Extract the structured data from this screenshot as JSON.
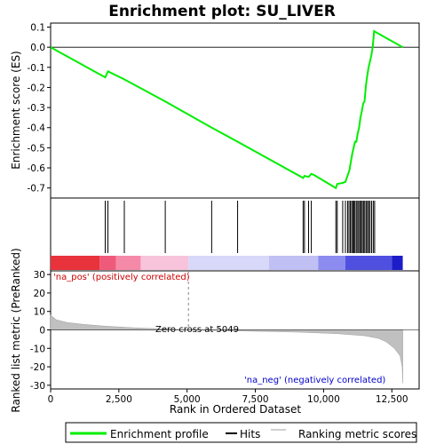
{
  "chart_data": {
    "type": "line",
    "title": "Enrichment plot: SU_LIVER",
    "xlabel": "Rank in Ordered Dataset",
    "ylabel_top": "Enrichment score (ES)",
    "ylabel_bottom": "Ranked list metric (PreRanked)",
    "xlim": [
      0,
      13500
    ],
    "ylim_top": [
      -0.75,
      0.12
    ],
    "ylim_bottom": [
      -32,
      32
    ],
    "x_ticks": [
      0,
      2500,
      5000,
      7500,
      10000,
      12500
    ],
    "x_tick_labels": [
      "0",
      "2,500",
      "5,000",
      "7,500",
      "10,000",
      "12,500"
    ],
    "y_ticks_top": [
      0.1,
      0.0,
      -0.1,
      -0.2,
      -0.3,
      -0.4,
      -0.5,
      -0.6,
      -0.7
    ],
    "y_tick_labels_top": [
      "0.1",
      "0.0",
      "-0.1",
      "-0.2",
      "-0.3",
      "-0.4",
      "-0.5",
      "-0.6",
      "-0.7"
    ],
    "y_ticks_bottom": [
      30,
      20,
      10,
      0,
      -10,
      -20,
      -30
    ],
    "y_tick_labels_bottom": [
      "30",
      "20",
      "10",
      "0",
      "-10",
      "-20",
      "-30"
    ],
    "series": [
      {
        "name": "Enrichment profile",
        "color": "#00ee00",
        "x": [
          0,
          2000,
          2100,
          2700,
          4200,
          5900,
          6850,
          9250,
          9300,
          9450,
          9550,
          9650,
          10450,
          10500,
          10700,
          10800,
          10900,
          10950,
          11000,
          11050,
          11100,
          11150,
          11200,
          11250,
          11300,
          11350,
          11400,
          11450,
          11500,
          11550,
          11600,
          11650,
          11700,
          11750,
          11800,
          11850,
          12900
        ],
        "y": [
          0.0,
          -0.15,
          -0.12,
          -0.16,
          -0.27,
          -0.4,
          -0.47,
          -0.65,
          -0.64,
          -0.645,
          -0.63,
          -0.635,
          -0.7,
          -0.68,
          -0.675,
          -0.67,
          -0.63,
          -0.61,
          -0.57,
          -0.53,
          -0.5,
          -0.47,
          -0.47,
          -0.43,
          -0.4,
          -0.35,
          -0.32,
          -0.28,
          -0.27,
          -0.19,
          -0.14,
          -0.1,
          -0.07,
          -0.04,
          0.0,
          0.08,
          0.0
        ]
      }
    ],
    "hits_x": [
      2000,
      2100,
      2700,
      4200,
      5900,
      6850,
      9250,
      9300,
      9450,
      9550,
      10450,
      10500,
      10700,
      10800,
      10880,
      10930,
      10980,
      11030,
      11070,
      11110,
      11150,
      11200,
      11250,
      11290,
      11340,
      11380,
      11420,
      11470,
      11510,
      11560,
      11610,
      11650,
      11700,
      11760,
      11820,
      11870
    ],
    "metric_points": [
      [
        0,
        8
      ],
      [
        200,
        5.5
      ],
      [
        600,
        4
      ],
      [
        1200,
        3
      ],
      [
        2000,
        2
      ],
      [
        3000,
        1.2
      ],
      [
        5049,
        0
      ],
      [
        7000,
        -0.6
      ],
      [
        9000,
        -1.2
      ],
      [
        10500,
        -2
      ],
      [
        11500,
        -3.2
      ],
      [
        12000,
        -4.5
      ],
      [
        12300,
        -6.5
      ],
      [
        12600,
        -10
      ],
      [
        12800,
        -14
      ],
      [
        12880,
        -20
      ],
      [
        12900,
        -29
      ]
    ],
    "annotations": {
      "pos_label": "'na_pos' (positively correlated)",
      "neg_label": "'na_neg' (negatively correlated)",
      "zero_cross": "Zero cross at 5049",
      "zero_cross_x": 5049
    },
    "colors": {
      "profile": "#00ee00",
      "hits": "#000000",
      "metric_fill": "#c0c0c0",
      "pos_label": "#cc0000",
      "neg_label": "#0000cc"
    }
  },
  "legend": {
    "items": [
      "Enrichment profile",
      "Hits",
      "Ranking metric scores"
    ]
  }
}
